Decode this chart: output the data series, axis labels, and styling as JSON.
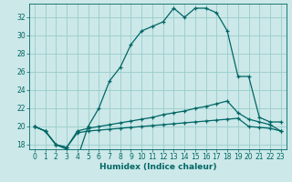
{
  "xlabel": "Humidex (Indice chaleur)",
  "bg_color": "#cce8e8",
  "grid_color": "#99cccc",
  "line_color": "#006666",
  "text_color": "#006666",
  "xlim": [
    -0.5,
    23.5
  ],
  "ylim": [
    17.5,
    33.5
  ],
  "yticks": [
    18,
    20,
    22,
    24,
    26,
    28,
    30,
    32
  ],
  "xticks": [
    0,
    1,
    2,
    3,
    4,
    5,
    6,
    7,
    8,
    9,
    10,
    11,
    12,
    13,
    14,
    15,
    16,
    17,
    18,
    19,
    20,
    21,
    22,
    23
  ],
  "line1_x": [
    0,
    1,
    2,
    3,
    4,
    5,
    6,
    7,
    8,
    9,
    10,
    11,
    12,
    13,
    14,
    15,
    16,
    17,
    18,
    19,
    20,
    21,
    22,
    23
  ],
  "line1_y": [
    20.0,
    19.5,
    18.0,
    17.5,
    16.5,
    20.0,
    22.0,
    25.0,
    26.5,
    29.0,
    30.5,
    31.0,
    31.5,
    33.0,
    32.0,
    33.0,
    33.0,
    32.5,
    30.5,
    25.5,
    25.5,
    21.0,
    20.5,
    20.5
  ],
  "line2_x": [
    0,
    1,
    2,
    3,
    4,
    5,
    6,
    7,
    8,
    9,
    10,
    11,
    12,
    13,
    14,
    15,
    16,
    17,
    18,
    19,
    20,
    21,
    22,
    23
  ],
  "line2_y": [
    20.0,
    19.5,
    18.0,
    17.7,
    19.5,
    19.8,
    20.0,
    20.2,
    20.4,
    20.6,
    20.8,
    21.0,
    21.3,
    21.5,
    21.7,
    22.0,
    22.2,
    22.5,
    22.8,
    21.5,
    20.8,
    20.5,
    20.2,
    19.5
  ],
  "line3_x": [
    0,
    1,
    2,
    3,
    4,
    5,
    6,
    7,
    8,
    9,
    10,
    11,
    12,
    13,
    14,
    15,
    16,
    17,
    18,
    19,
    20,
    21,
    22,
    23
  ],
  "line3_y": [
    20.0,
    19.5,
    18.0,
    17.7,
    19.3,
    19.5,
    19.6,
    19.7,
    19.8,
    19.9,
    20.0,
    20.1,
    20.2,
    20.3,
    20.4,
    20.5,
    20.6,
    20.7,
    20.8,
    20.9,
    20.0,
    19.9,
    19.8,
    19.5
  ]
}
